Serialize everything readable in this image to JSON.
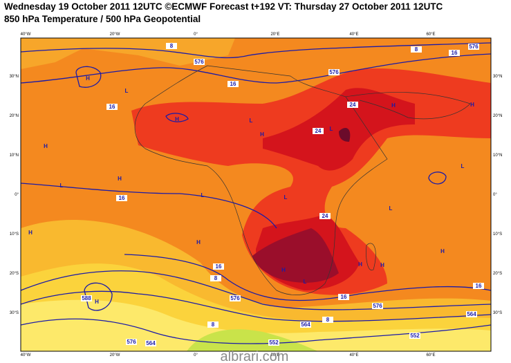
{
  "header": {
    "line1": "Wednesday 19 October 2011 12UTC ©ECMWF Forecast t+192 VT: Thursday 27 October 2011 12UTC",
    "line2": "850 hPa Temperature / 500 hPa Geopotential"
  },
  "map": {
    "lon_labels": [
      "40°W",
      "20°W",
      "0°",
      "20°E",
      "40°E",
      "60°E"
    ],
    "lat_labels": [
      "30°N",
      "20°N",
      "10°N",
      "0°",
      "10°S",
      "20°S",
      "30°S"
    ],
    "contour_labels": [
      "8",
      "16",
      "8",
      "16",
      "16",
      "24",
      "24",
      "16",
      "24",
      "16",
      "8",
      "16",
      "16",
      "8",
      "8",
      "576",
      "576",
      "576",
      "576",
      "576",
      "564",
      "552",
      "552",
      "564",
      "588",
      "564",
      "576"
    ],
    "pressure_centers": [
      "H",
      "L",
      "H",
      "L",
      "H",
      "H",
      "H",
      "L",
      "H",
      "L",
      "H",
      "L",
      "L",
      "L",
      "L",
      "H",
      "H",
      "H",
      "L",
      "H",
      "H",
      "H",
      "H"
    ]
  },
  "watermark": "albrari.com"
}
